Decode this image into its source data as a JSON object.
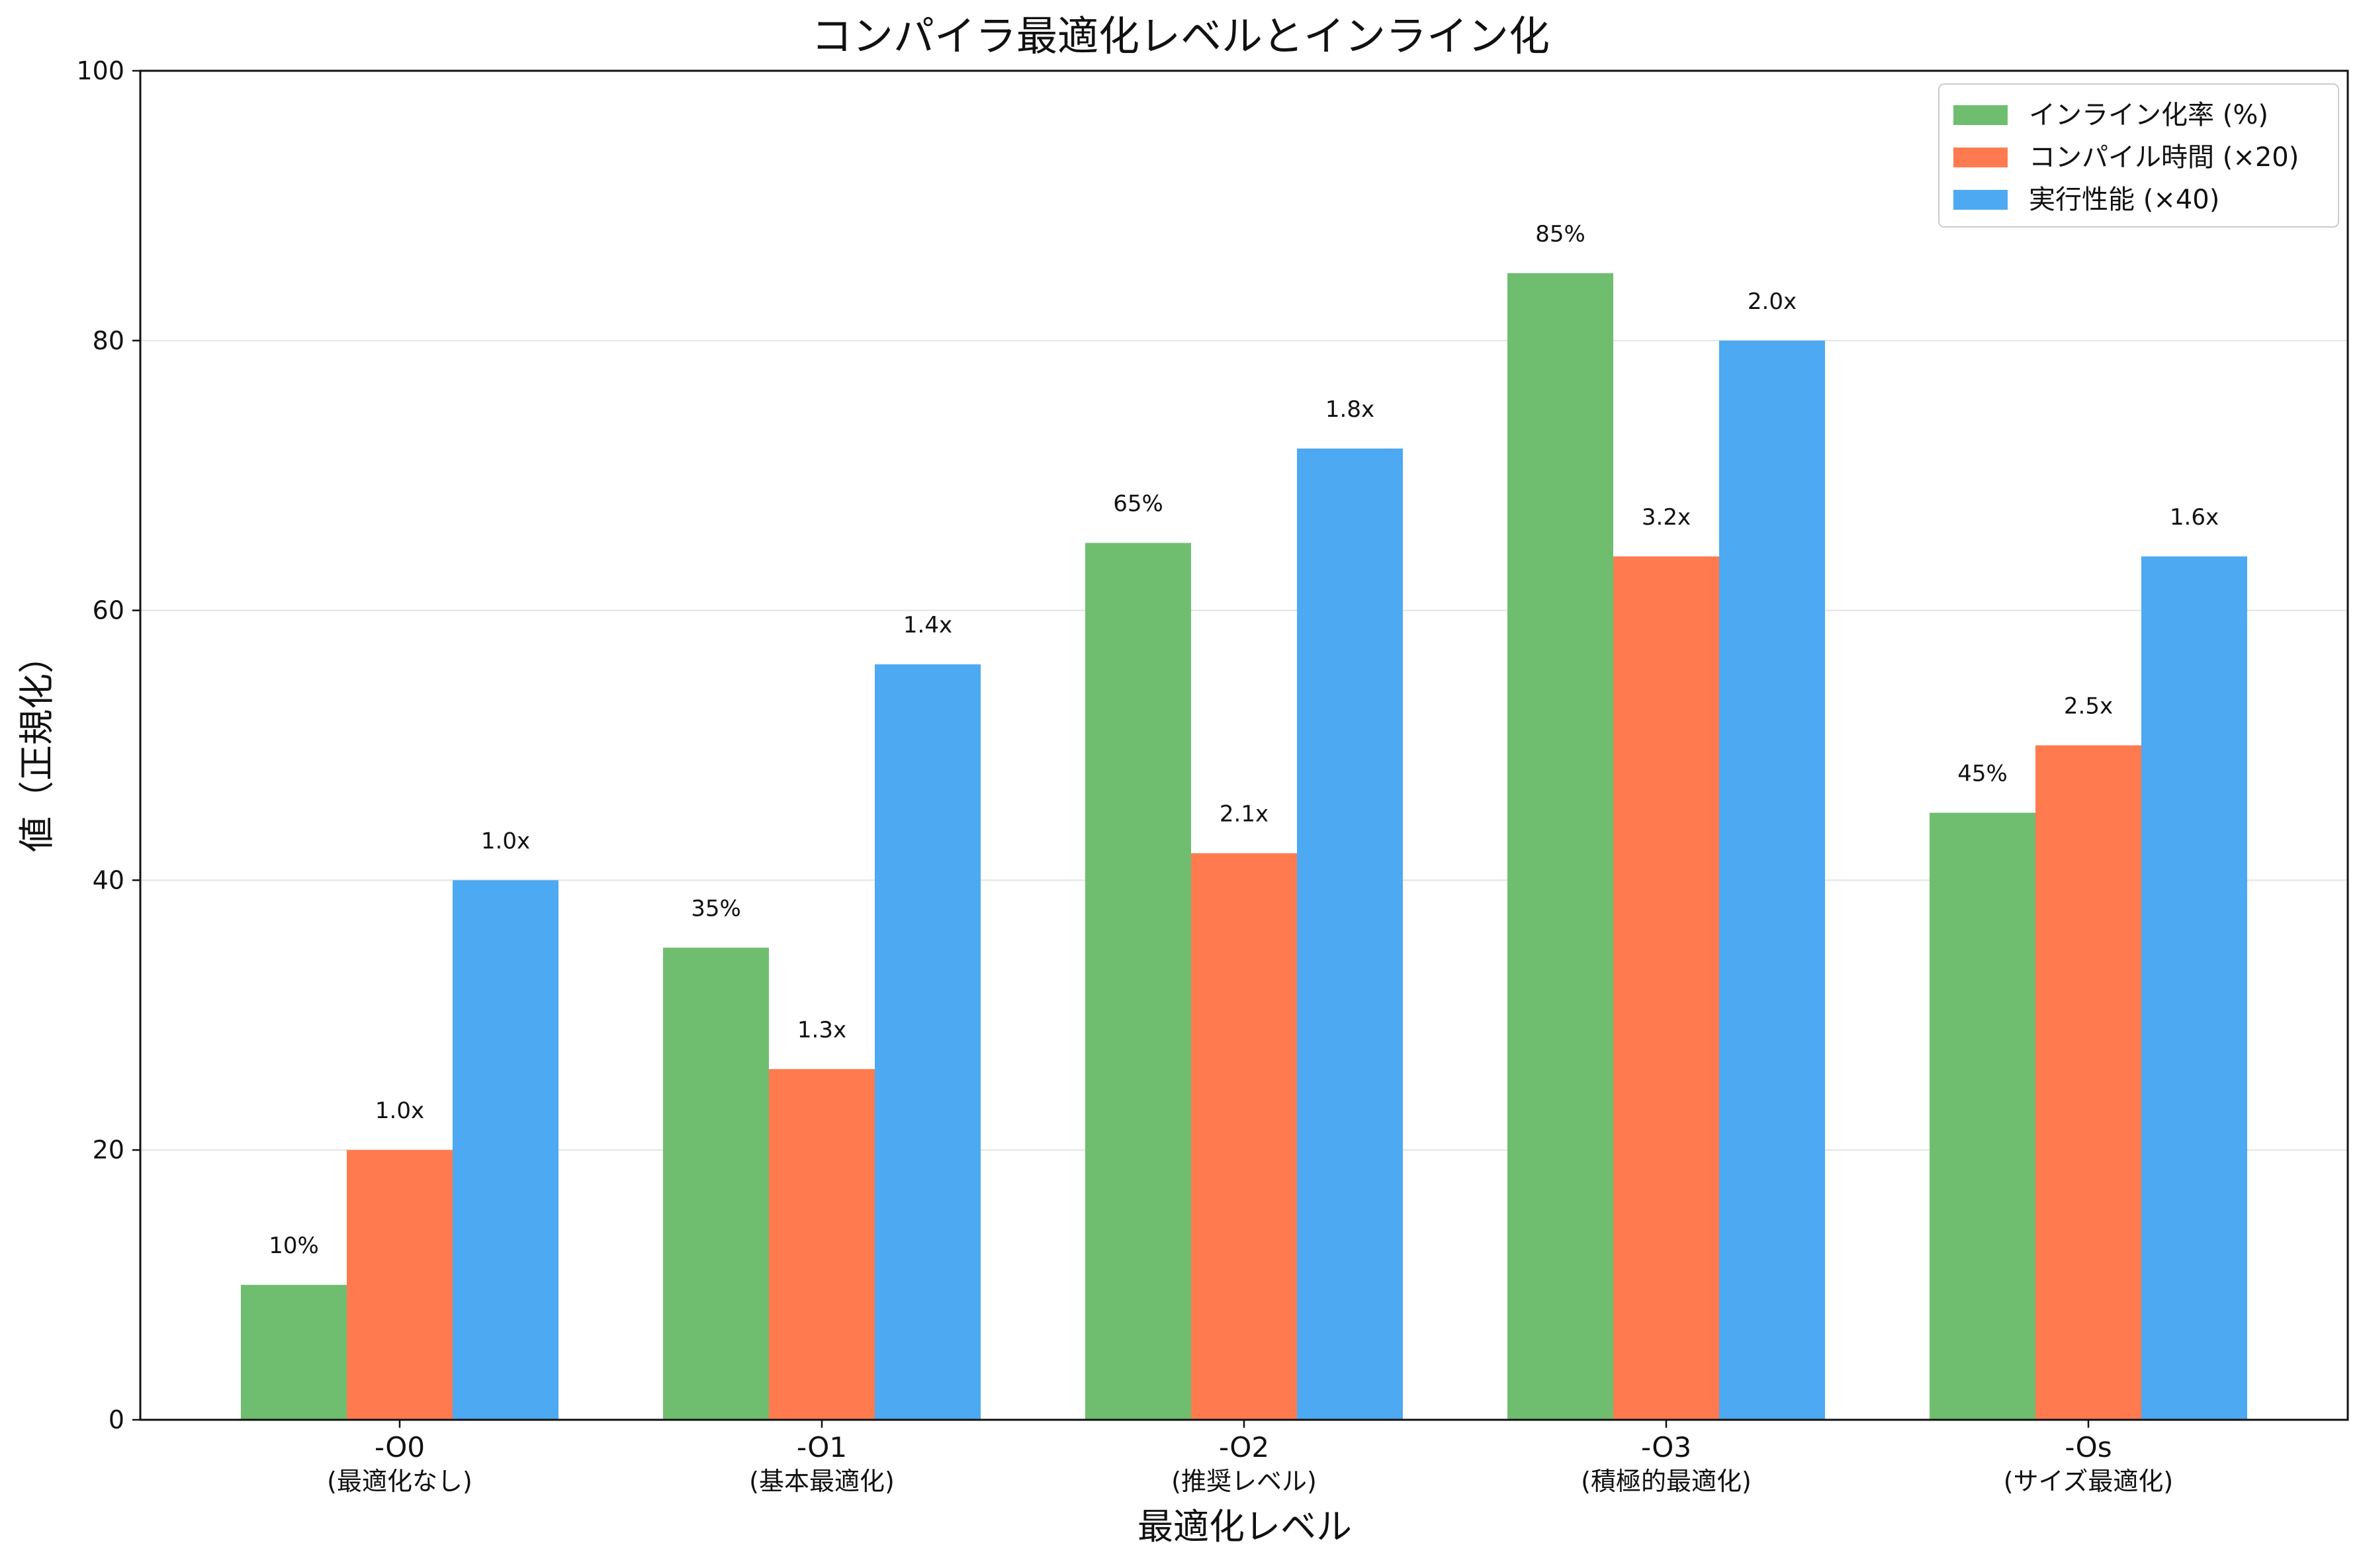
{
  "chart_data": {
    "type": "bar",
    "title": "コンパイラ最適化レベルとインライン化",
    "xlabel": "最適化レベル",
    "ylabel": "値（正規化）",
    "ylim": [
      0,
      100
    ],
    "yticks": [
      0,
      20,
      40,
      60,
      80,
      100
    ],
    "grid": "horizontal",
    "legend_position": "top-right",
    "categories": [
      "-O0",
      "-O1",
      "-O2",
      "-O3",
      "-Os"
    ],
    "category_sublabels": [
      "(最適化なし)",
      "(基本最適化)",
      "(推奨レベル)",
      "(積極的最適化)",
      "(サイズ最適化)"
    ],
    "series": [
      {
        "name": "インライン化率 (%)",
        "color": "#6fbe6f",
        "values": [
          10,
          35,
          65,
          85,
          45
        ],
        "labels": [
          "10%",
          "35%",
          "65%",
          "85%",
          "45%"
        ]
      },
      {
        "name": "コンパイル時間 (×20)",
        "color": "#ff7b4f",
        "values": [
          20,
          26,
          42,
          64,
          50
        ],
        "labels": [
          "1.0x",
          "1.3x",
          "2.1x",
          "3.2x",
          "2.5x"
        ]
      },
      {
        "name": "実行性能 (×40)",
        "color": "#4da9f2",
        "values": [
          40,
          56,
          72,
          80,
          64
        ],
        "labels": [
          "1.0x",
          "1.4x",
          "1.8x",
          "2.0x",
          "1.6x"
        ]
      }
    ]
  }
}
